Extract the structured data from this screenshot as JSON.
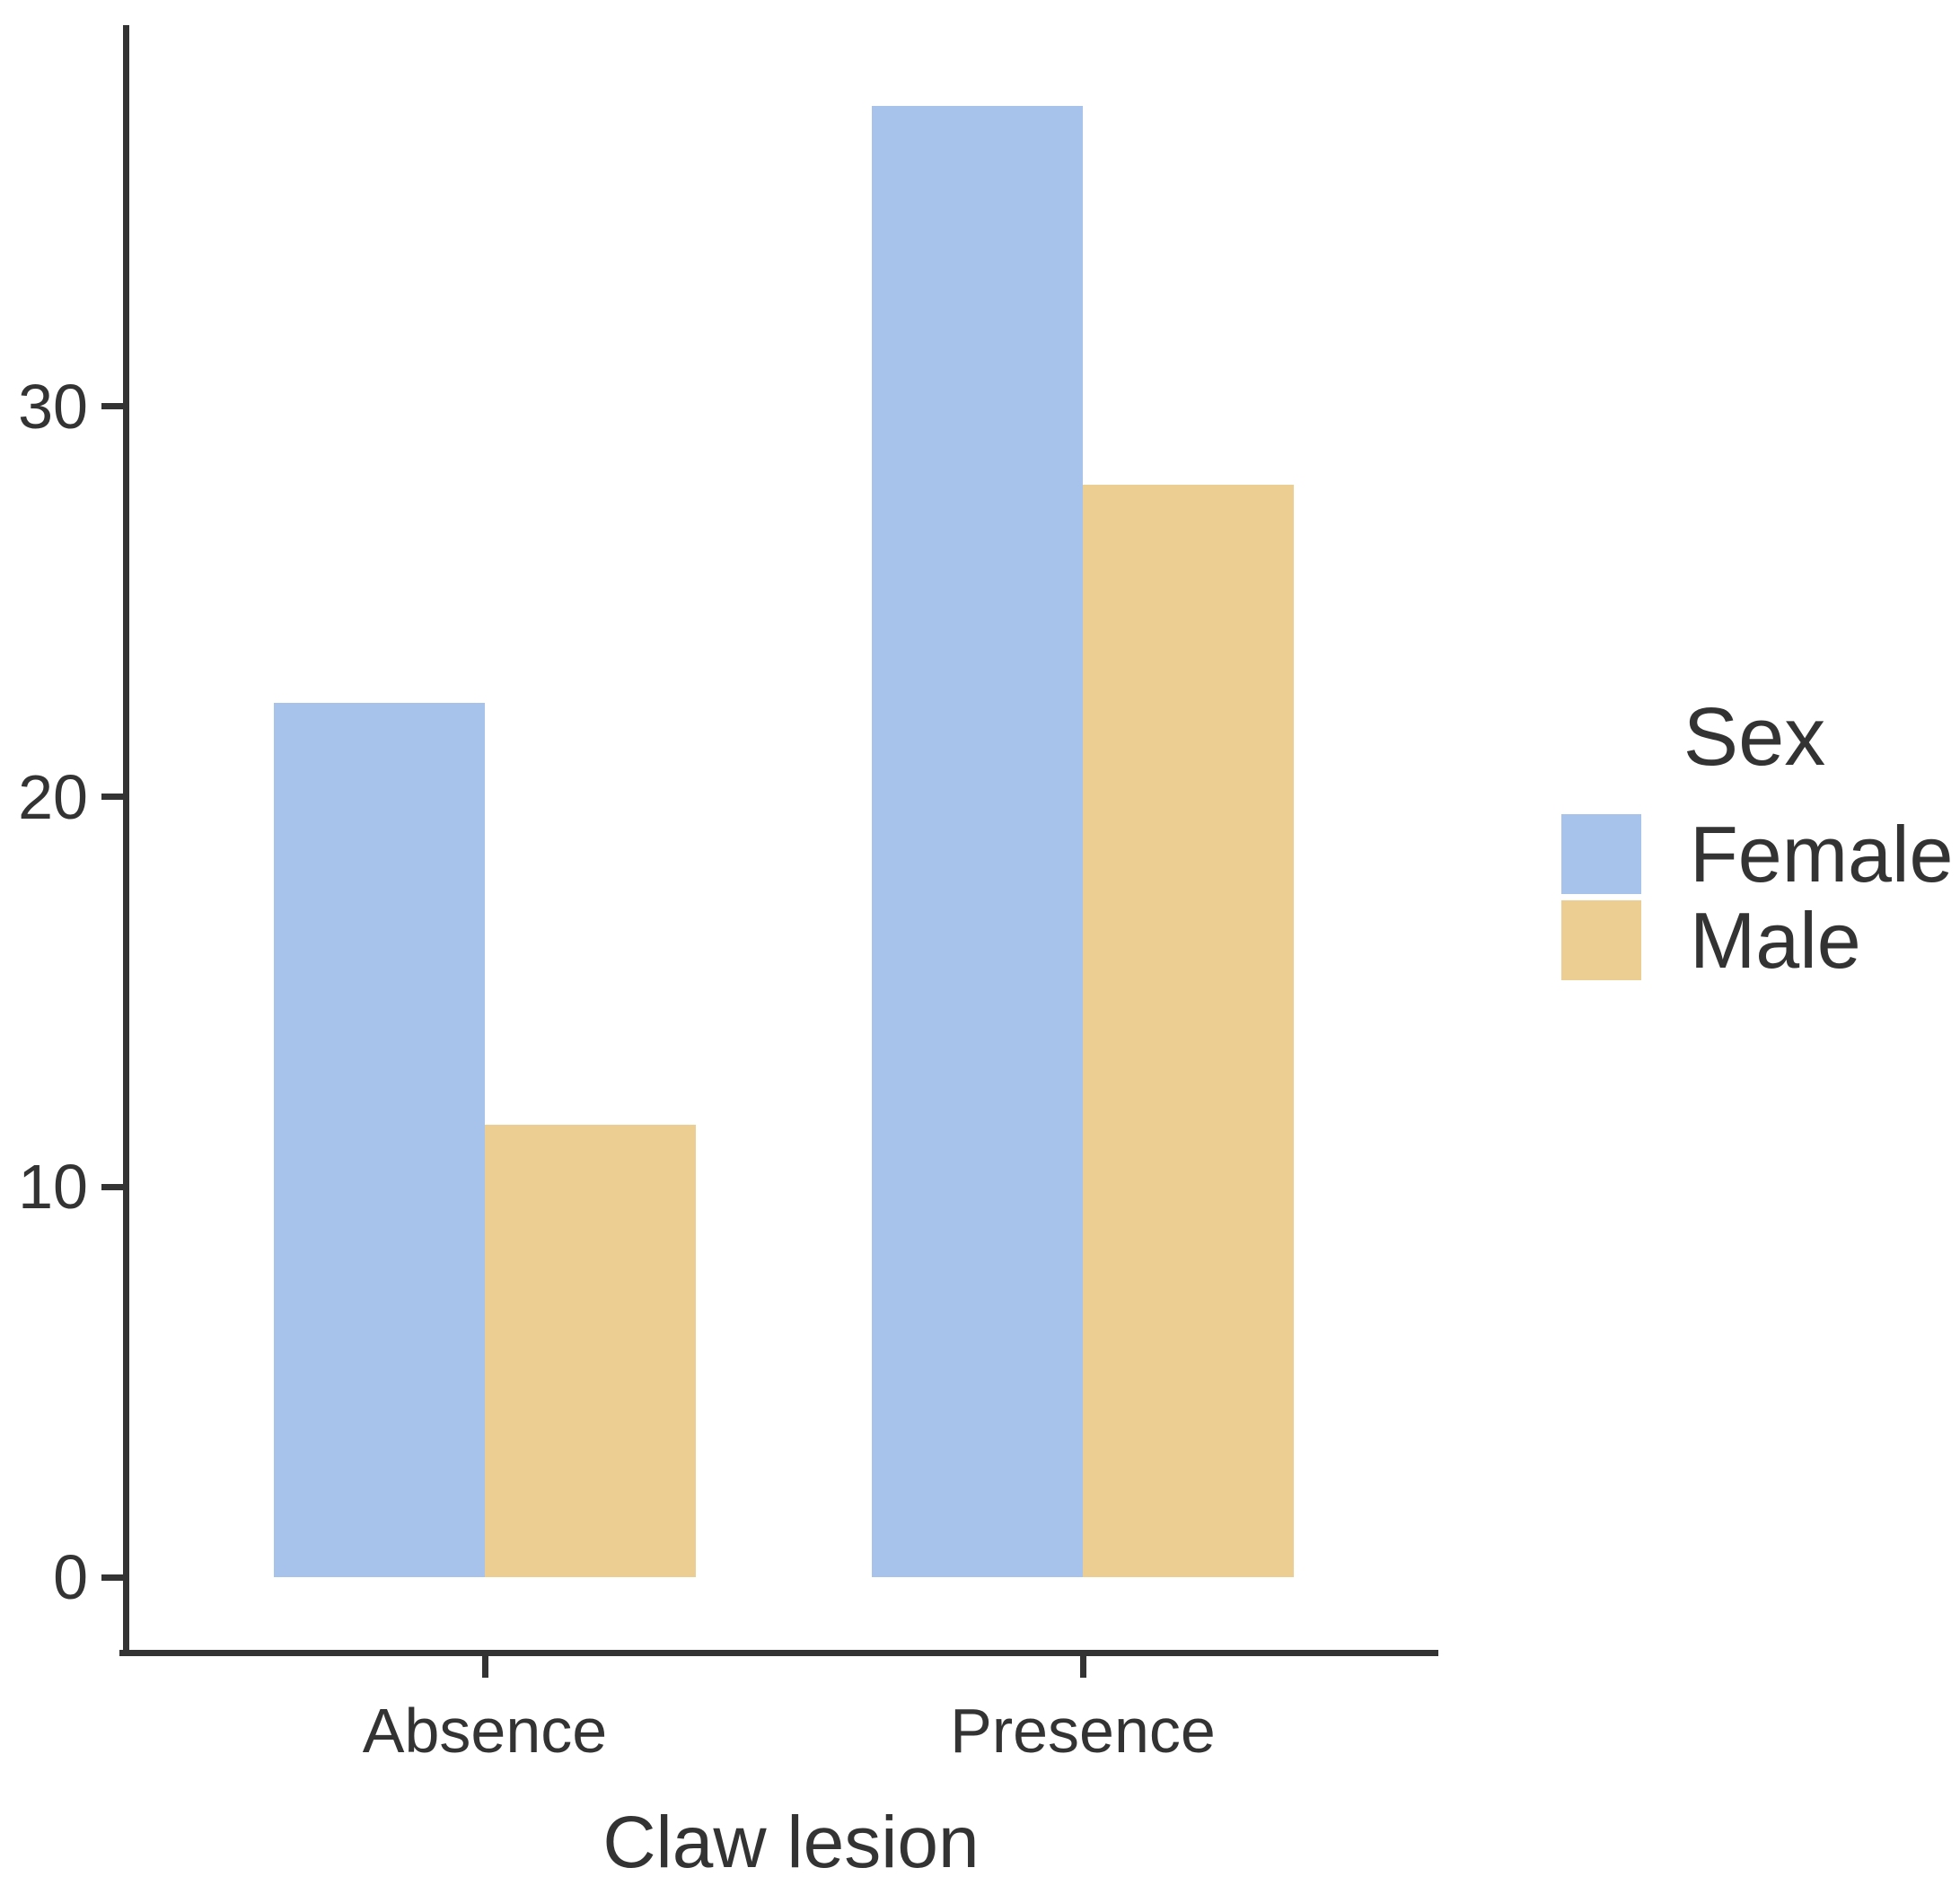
{
  "chart_data": {
    "type": "bar",
    "title": "",
    "categories": [
      "Absence",
      "Presence"
    ],
    "series": [
      {
        "name": "Female",
        "color": "#a7c3ec",
        "values": [
          22.4,
          37.7
        ]
      },
      {
        "name": "Male",
        "color": "#ecce93",
        "values": [
          11.6,
          28.0
        ]
      }
    ],
    "xlabel": "Claw lesion",
    "ylabel": "",
    "yticks": [
      0,
      10,
      20,
      30
    ],
    "ylim": [
      0,
      39.8
    ],
    "grid": false,
    "legend_title": "Sex",
    "legend_position": "right",
    "legend_entries": [
      "Female",
      "Male"
    ],
    "axis_color": "#333333",
    "text_color": "#333333",
    "background_color": "#ffffff"
  }
}
